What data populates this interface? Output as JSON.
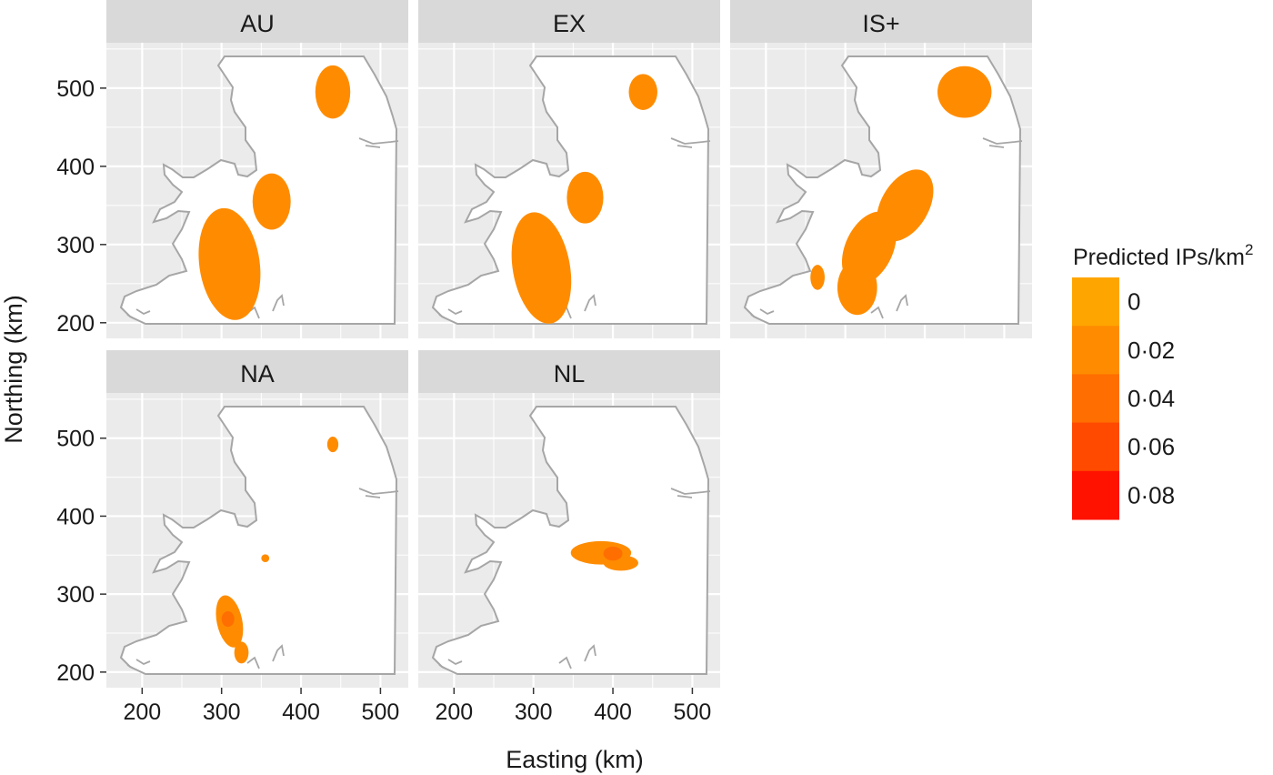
{
  "chart_data": {
    "type": "heatmap",
    "xlabel": "Easting (km)",
    "ylabel": "Northing (km)",
    "xlim": [
      155,
      535
    ],
    "ylim": [
      180,
      558
    ],
    "x_ticks": [
      200,
      300,
      400,
      500
    ],
    "y_ticks": [
      200,
      300,
      400,
      500
    ],
    "x_tick_labels": [
      "200",
      "300",
      "400",
      "500"
    ],
    "y_tick_labels": [
      "200",
      "300",
      "400",
      "500"
    ],
    "grid": true,
    "legend": {
      "title": "Predicted IPs/km",
      "title_superscript": "2",
      "placement": "right",
      "breaks": [
        0,
        0.02,
        0.04,
        0.06,
        0.08
      ],
      "labels": [
        "0",
        "0·02",
        "0·04",
        "0·06",
        "0·08"
      ],
      "colors": [
        "#FFA500",
        "#FF8C00",
        "#FF6E00",
        "#FF4A00",
        "#FF1200"
      ]
    },
    "colors": {
      "panel_background": "#EBEBEB",
      "strip_background": "#D9D9D9",
      "grid_line": "#FFFFFF",
      "land": "#FFFFFF",
      "coastline": "#A6A6A6"
    },
    "facets": [
      {
        "label": "AU",
        "hotspots": [
          {
            "x": 440,
            "y": 495,
            "rx": 22,
            "ry": 34,
            "rotate": 0,
            "value": 0.015
          },
          {
            "x": 363,
            "y": 355,
            "rx": 24,
            "ry": 36,
            "rotate": 0,
            "value": 0.015
          },
          {
            "x": 310,
            "y": 275,
            "rx": 38,
            "ry": 72,
            "rotate": -8,
            "value": 0.015
          }
        ]
      },
      {
        "label": "EX",
        "hotspots": [
          {
            "x": 438,
            "y": 495,
            "rx": 18,
            "ry": 23,
            "rotate": 0,
            "value": 0.015
          },
          {
            "x": 365,
            "y": 360,
            "rx": 23,
            "ry": 33,
            "rotate": 0,
            "value": 0.015
          },
          {
            "x": 310,
            "y": 270,
            "rx": 36,
            "ry": 72,
            "rotate": -10,
            "value": 0.015
          }
        ]
      },
      {
        "label": "IS+",
        "hotspots": [
          {
            "x": 450,
            "y": 495,
            "rx": 34,
            "ry": 33,
            "rotate": 0,
            "value": 0.015
          },
          {
            "x": 375,
            "y": 350,
            "rx": 30,
            "ry": 50,
            "rotate": 30,
            "value": 0.015
          },
          {
            "x": 330,
            "y": 295,
            "rx": 30,
            "ry": 50,
            "rotate": 25,
            "value": 0.015
          },
          {
            "x": 315,
            "y": 245,
            "rx": 25,
            "ry": 35,
            "rotate": 0,
            "value": 0.015
          },
          {
            "x": 265,
            "y": 258,
            "rx": 9,
            "ry": 16,
            "rotate": 0,
            "value": 0.015
          }
        ]
      },
      {
        "label": "NA",
        "hotspots": [
          {
            "x": 440,
            "y": 492,
            "rx": 7,
            "ry": 10,
            "rotate": 0,
            "value": 0.02
          },
          {
            "x": 355,
            "y": 346,
            "rx": 5,
            "ry": 5,
            "rotate": 0,
            "value": 0.02
          },
          {
            "x": 310,
            "y": 265,
            "rx": 16,
            "ry": 34,
            "rotate": -12,
            "value": 0.03
          },
          {
            "x": 325,
            "y": 225,
            "rx": 9,
            "ry": 14,
            "rotate": 0,
            "value": 0.03
          },
          {
            "x": 308,
            "y": 268,
            "rx": 8,
            "ry": 10,
            "rotate": 0,
            "value": 0.04
          }
        ]
      },
      {
        "label": "NL",
        "hotspots": [
          {
            "x": 385,
            "y": 353,
            "rx": 38,
            "ry": 15,
            "rotate": 0,
            "value": 0.025
          },
          {
            "x": 410,
            "y": 340,
            "rx": 22,
            "ry": 10,
            "rotate": 0,
            "value": 0.025
          },
          {
            "x": 400,
            "y": 352,
            "rx": 12,
            "ry": 9,
            "rotate": 0,
            "value": 0.04
          }
        ]
      }
    ]
  }
}
